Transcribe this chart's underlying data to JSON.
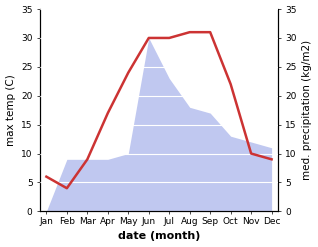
{
  "months": [
    "Jan",
    "Feb",
    "Mar",
    "Apr",
    "May",
    "Jun",
    "Jul",
    "Aug",
    "Sep",
    "Oct",
    "Nov",
    "Dec"
  ],
  "temperature": [
    6,
    4,
    9,
    17,
    24,
    30,
    30,
    31,
    31,
    22,
    10,
    9
  ],
  "precipitation": [
    0,
    9,
    9,
    9,
    10,
    30,
    23,
    18,
    17,
    13,
    12,
    11
  ],
  "temp_color": "#cc3333",
  "precip_fill_color": "#c0c8f0",
  "ylabel_left": "max temp (C)",
  "ylabel_right": "med. precipitation (kg/m2)",
  "xlabel": "date (month)",
  "ylim": [
    0,
    35
  ],
  "axis_fontsize": 7.5,
  "tick_fontsize": 6.5,
  "xlabel_fontsize": 8,
  "bg_color": "#ffffff",
  "plot_bg_color": "#e8e8e8"
}
